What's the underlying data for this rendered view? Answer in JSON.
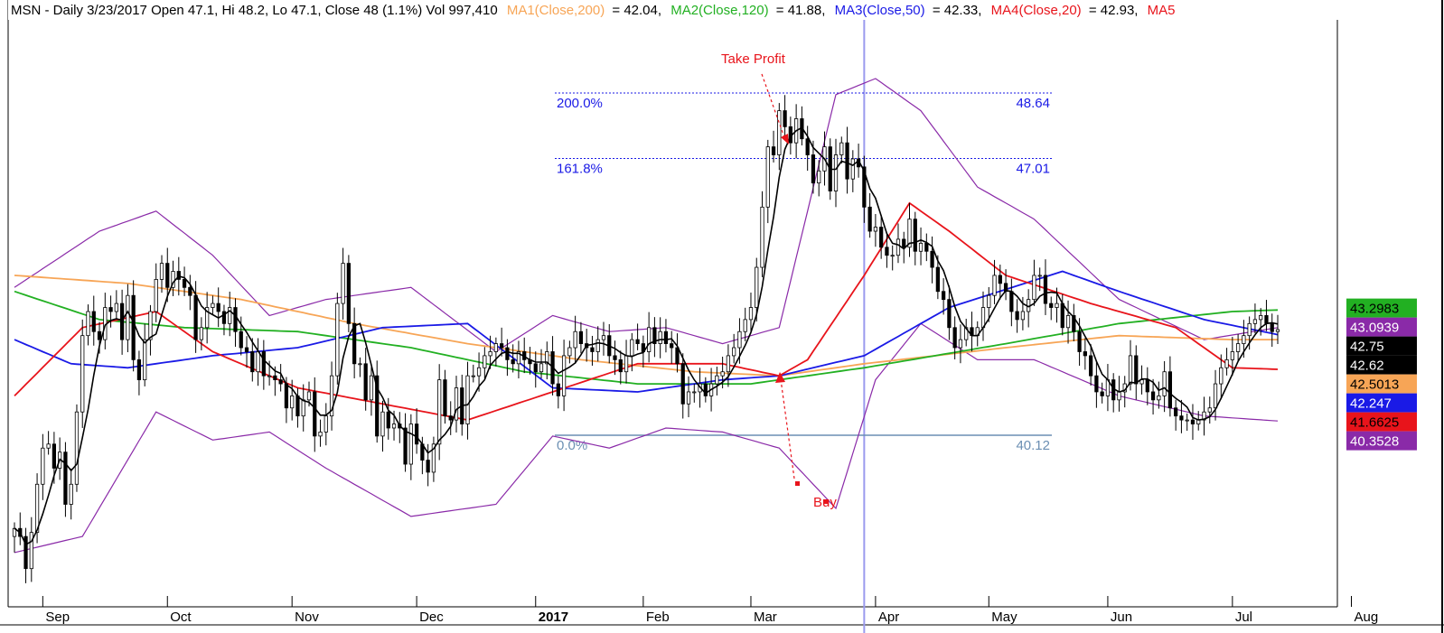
{
  "header": {
    "symbol_info": "MSN - Daily 3/23/2017 Open 47.1, Hi 48.2, Lo 47.1, Close 48 (1.1%) Vol 997,410",
    "ma1_label": "MA1(Close,200)",
    "ma1_value": "= 42.04,",
    "ma2_label": "MA2(Close,120)",
    "ma2_value": "= 41.88,",
    "ma3_label": "MA3(Close,50)",
    "ma3_value": "= 42.33,",
    "ma4_label": "MA4(Close,20)",
    "ma4_value": "= 42.93,",
    "ma5_label": "MA5"
  },
  "colors": {
    "ma200": "#f7a556",
    "ma120": "#22b022",
    "ma50": "#1a1ae6",
    "ma20": "#e8141b",
    "bands": "#8a2aa8",
    "fast": "#000000",
    "fib_level": "#1a1ae6",
    "fib_base": "#6b8fb3",
    "cursor": "#9a9aee",
    "annotation": "#e8141b"
  },
  "annotations": {
    "take_profit": "Take Profit",
    "buy": "Buy"
  },
  "fib": [
    {
      "label": "200.0%",
      "value": "48.64",
      "price": 48.64,
      "color": "#1a1ae6"
    },
    {
      "label": "161.8%",
      "value": "47.01",
      "price": 47.01,
      "color": "#1a1ae6"
    },
    {
      "label": "0.0%",
      "value": "40.12",
      "price": 40.12,
      "color": "#6b8fb3"
    }
  ],
  "price_tags": [
    {
      "label": "43.2983",
      "price": 43.2983,
      "bg": "#22b022",
      "fg": "#000000"
    },
    {
      "label": "43.0939",
      "price": 43.0939,
      "bg": "#8a2aa8",
      "fg": "#ffffff"
    },
    {
      "label": "42.75",
      "price": 42.75,
      "bg": "#000000",
      "fg": "#ffffff"
    },
    {
      "label": "42.62",
      "price": 42.62,
      "bg": "#000000",
      "fg": "#ffffff"
    },
    {
      "label": "42.5013",
      "price": 42.5013,
      "bg": "#f7a556",
      "fg": "#000000"
    },
    {
      "label": "42.247",
      "price": 42.247,
      "bg": "#1a1ae6",
      "fg": "#ffffff"
    },
    {
      "label": "41.6625",
      "price": 41.6625,
      "bg": "#e8141b",
      "fg": "#000000"
    },
    {
      "label": "40.3528",
      "price": 40.3528,
      "bg": "#8a2aa8",
      "fg": "#ffffff"
    }
  ],
  "chart_data": {
    "type": "line",
    "title": "MSN - Daily",
    "x_axis_labels": [
      "Sep",
      "Oct",
      "Nov",
      "Dec",
      "2017",
      "Feb",
      "Mar",
      "Apr",
      "May",
      "Jun",
      "Jul",
      "Aug"
    ],
    "x_axis_day_index": [
      5,
      27,
      49,
      71,
      92,
      111,
      130,
      152,
      172,
      193,
      215,
      236
    ],
    "ylim": [
      37.5,
      49.5
    ],
    "cursor_day": 150,
    "grid": false,
    "close": [
      37.8,
      37.6,
      36.8,
      37.7,
      38.9,
      39.8,
      39.9,
      39.3,
      39.7,
      38.4,
      38.9,
      40.7,
      42.6,
      43.2,
      42.7,
      42.5,
      43.3,
      43.2,
      43.4,
      42.5,
      43.6,
      42.0,
      41.5,
      42.5,
      43.2,
      44.0,
      44.4,
      43.8,
      44.2,
      44.0,
      43.8,
      43.6,
      42.5,
      42.8,
      43.3,
      43.4,
      43.2,
      42.9,
      43.3,
      42.7,
      42.3,
      42.2,
      41.7,
      42.2,
      41.6,
      41.6,
      41.5,
      41.4,
      40.8,
      41.1,
      40.6,
      41.0,
      41.2,
      40.1,
      40.2,
      40.6,
      41.6,
      43.4,
      44.4,
      42.9,
      41.9,
      41.9,
      41.0,
      41.6,
      40.1,
      40.7,
      40.3,
      40.4,
      40.3,
      39.4,
      40.4,
      39.9,
      39.5,
      39.2,
      39.9,
      41.5,
      40.6,
      40.5,
      41.3,
      40.4,
      41.6,
      41.6,
      41.8,
      42.1,
      42.2,
      42.4,
      42.3,
      42.0,
      41.9,
      42.2,
      42.0,
      41.9,
      41.7,
      41.9,
      42.2,
      41.4,
      41.1,
      42.1,
      42.3,
      42.7,
      42.4,
      42.3,
      42.2,
      42.5,
      42.6,
      42.1,
      42.0,
      41.7,
      42.1,
      42.5,
      42.4,
      42.2,
      42.8,
      42.4,
      42.7,
      42.4,
      42.3,
      41.9,
      40.9,
      41.2,
      41.2,
      41.4,
      41.1,
      41.4,
      41.6,
      41.7,
      42.1,
      42.3,
      42.7,
      43.0,
      43.3,
      44.3,
      45.8,
      47.3,
      47.1,
      48.2,
      47.8,
      47.4,
      48.0,
      47.5,
      47.1,
      46.4,
      46.7,
      47.3,
      46.2,
      47.1,
      47.4,
      46.5,
      47.0,
      46.8,
      45.8,
      45.2,
      45.3,
      44.8,
      44.6,
      44.6,
      45.0,
      44.8,
      45.5,
      44.7,
      44.9,
      44.7,
      44.3,
      43.7,
      43.5,
      42.8,
      42.3,
      42.5,
      42.8,
      42.6,
      42.8,
      43.3,
      43.6,
      44.1,
      43.9,
      43.7,
      43.2,
      43.0,
      43.2,
      43.5,
      44.1,
      44.1,
      43.4,
      43.3,
      43.4,
      42.8,
      43.1,
      42.7,
      42.2,
      42.1,
      41.6,
      41.2,
      41.1,
      41.5,
      41.0,
      41.2,
      41.4,
      42.1,
      41.4,
      41.5,
      41.2,
      41.0,
      41.1,
      41.7,
      40.8,
      40.6,
      40.5,
      40.5,
      40.4,
      40.5,
      40.7,
      40.8,
      41.4,
      41.8,
      42.0,
      42.2,
      42.4,
      42.6,
      42.9,
      43.0,
      43.1,
      42.9,
      42.7,
      42.75
    ],
    "series": [
      {
        "name": "MA1(Close,200)",
        "color": "#f7a556",
        "x": [
          0,
          20,
          40,
          60,
          80,
          100,
          120,
          135,
          150,
          175,
          195,
          215,
          236
        ],
        "values": [
          44.1,
          43.9,
          43.5,
          42.9,
          42.4,
          42.0,
          41.7,
          41.6,
          41.9,
          42.3,
          42.6,
          42.5,
          42.5
        ]
      },
      {
        "name": "MA2(Close,120)",
        "color": "#22b022",
        "x": [
          0,
          15,
          30,
          50,
          70,
          90,
          110,
          130,
          150,
          175,
          195,
          215,
          236
        ],
        "values": [
          43.7,
          43.0,
          42.8,
          42.7,
          42.3,
          41.7,
          41.4,
          41.4,
          41.8,
          42.4,
          42.9,
          43.2,
          43.3
        ]
      },
      {
        "name": "MA3(Close,50)",
        "color": "#1a1ae6",
        "x": [
          0,
          10,
          20,
          35,
          50,
          65,
          80,
          95,
          110,
          125,
          135,
          150,
          165,
          185,
          195,
          210,
          236
        ],
        "values": [
          42.5,
          41.9,
          41.8,
          42.1,
          42.3,
          42.8,
          42.9,
          41.3,
          41.2,
          41.5,
          41.6,
          42.1,
          43.3,
          44.2,
          43.7,
          43.0,
          42.25
        ]
      },
      {
        "name": "MA4(Close,20)",
        "color": "#e8141b",
        "x": [
          0,
          12,
          25,
          35,
          50,
          65,
          80,
          95,
          110,
          125,
          135,
          140,
          150,
          158,
          165,
          175,
          190,
          205,
          215,
          236
        ],
        "values": [
          41.1,
          42.8,
          43.2,
          42.2,
          41.3,
          40.9,
          40.5,
          41.2,
          41.9,
          41.9,
          41.6,
          42.0,
          44.1,
          45.9,
          45.2,
          44.1,
          43.4,
          42.8,
          41.8,
          41.7
        ]
      }
    ],
    "bands": [
      {
        "name": "upper",
        "color": "#8a2aa8",
        "x": [
          0,
          15,
          25,
          35,
          45,
          55,
          70,
          85,
          95,
          105,
          115,
          125,
          135,
          145,
          152,
          160,
          170,
          180,
          195,
          210,
          236
        ],
        "values": [
          43.8,
          45.2,
          45.7,
          44.6,
          43.1,
          43.5,
          43.8,
          42.2,
          43.1,
          42.7,
          42.8,
          42.4,
          42.8,
          48.6,
          49.0,
          48.2,
          46.3,
          45.5,
          43.5,
          42.5,
          43.1
        ]
      },
      {
        "name": "lower",
        "color": "#8a2aa8",
        "x": [
          0,
          12,
          25,
          35,
          45,
          55,
          70,
          85,
          95,
          105,
          115,
          125,
          135,
          145,
          152,
          160,
          170,
          180,
          195,
          210,
          236
        ],
        "values": [
          37.2,
          37.6,
          40.7,
          40.0,
          40.2,
          39.3,
          38.1,
          38.4,
          40.1,
          39.8,
          40.3,
          40.2,
          39.8,
          38.3,
          41.5,
          42.9,
          42.0,
          42.0,
          41.1,
          40.6,
          40.35
        ]
      }
    ]
  }
}
